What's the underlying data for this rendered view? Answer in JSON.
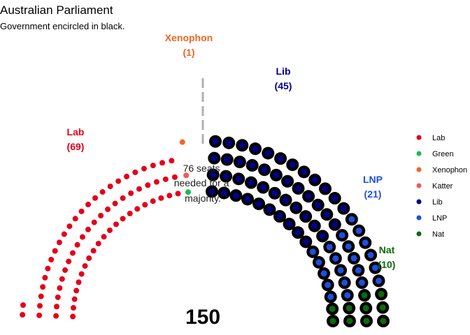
{
  "chart_data": {
    "type": "parliament",
    "title": "Australian Parliament",
    "subtitle": "Government encircled in black.",
    "total_seats": "150",
    "majority_seats": 76,
    "majority_note": [
      "76 seats",
      "needed for a",
      "majority."
    ],
    "parties": [
      {
        "name": "Lab",
        "seats": 69,
        "color": "#e3001b",
        "government": false,
        "label": "(69)"
      },
      {
        "name": "Green",
        "seats": 1,
        "color": "#1db954",
        "government": false,
        "label": ""
      },
      {
        "name": "Katter",
        "seats": 1,
        "color": "#f05a5a",
        "government": false,
        "label": ""
      },
      {
        "name": "Xenophon",
        "seats": 1,
        "color": "#f26522",
        "government": false,
        "label": "(1)"
      },
      {
        "name": "Lib",
        "seats": 45,
        "color": "#00008b",
        "government": true,
        "label": "(45)"
      },
      {
        "name": "LNP",
        "seats": 21,
        "color": "#1f4fe0",
        "government": true,
        "label": "(21)"
      },
      {
        "name": "Nat",
        "seats": 10,
        "color": "#0b6b0b",
        "government": true,
        "label": "(10)"
      }
    ],
    "legend": [
      "Lab",
      "Green",
      "Xenophon",
      "Katter",
      "Lib",
      "LNP",
      "Nat"
    ],
    "legend_placement": "right"
  }
}
